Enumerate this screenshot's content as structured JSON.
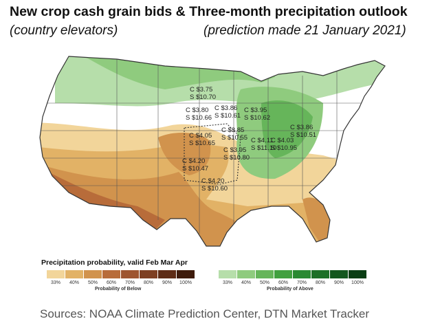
{
  "header": {
    "title": "New crop cash grain bids & Three-month precipitation outlook",
    "subtitle_left": "(country elevators)",
    "subtitle_right": "(prediction made 21 January 2021)"
  },
  "legend": {
    "title": "Precipitation probability, valid Feb Mar Apr",
    "below_caption": "Probability of Below",
    "above_caption": "Probability of Above",
    "below_ticks": [
      "33%",
      "40%",
      "50%",
      "60%",
      "70%",
      "80%",
      "90%",
      "100%"
    ],
    "above_ticks": [
      "33%",
      "40%",
      "50%",
      "60%",
      "70%",
      "80%",
      "90%",
      "100%"
    ],
    "below_colors": [
      "#f2d59a",
      "#e2b266",
      "#d1934d",
      "#b86c3a",
      "#9e5530",
      "#7e3f22",
      "#5e2c16",
      "#3e1b0c"
    ],
    "above_colors": [
      "#b6deaa",
      "#8fcb7e",
      "#66b55a",
      "#41a03f",
      "#2a8a32",
      "#1c7027",
      "#13571e",
      "#0a3e14"
    ]
  },
  "bids": [
    {
      "corn": "C $3.75",
      "soy": "S $10.70"
    },
    {
      "corn": "C $3.80",
      "soy": "S $10.66"
    },
    {
      "corn": "C $3.86",
      "soy": "S $10.61"
    },
    {
      "corn": "C $3.95",
      "soy": "S $10.62"
    },
    {
      "corn": "C $3.85",
      "soy": "S $10.55"
    },
    {
      "corn": "C $4.05",
      "soy": "S $10.65"
    },
    {
      "corn": "C $3.95",
      "soy": "S $10.80"
    },
    {
      "corn": "C $4.11",
      "soy": "S $11.10"
    },
    {
      "corn": "C $4.03",
      "soy": "S $10.95"
    },
    {
      "corn": "C $3.86",
      "soy": "S $10.51"
    },
    {
      "corn": "C $4.20",
      "soy": "S $10.47"
    },
    {
      "corn": "C $4.20",
      "soy": "S $10.60"
    }
  ],
  "source": "Sources: NOAA Climate Prediction Center, DTN Market Tracker"
}
